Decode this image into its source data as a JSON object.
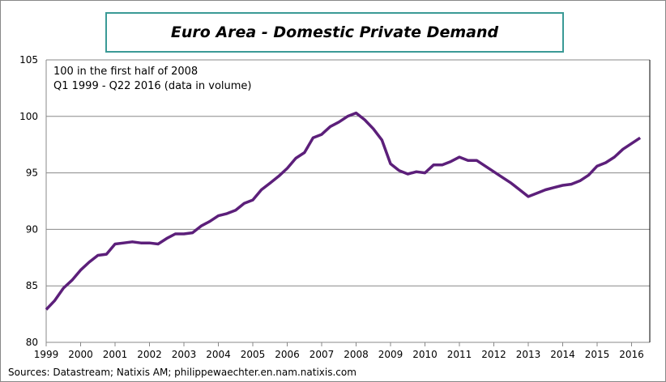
{
  "chart_data": {
    "type": "line",
    "title": "Euro Area - Domestic Private Demand",
    "subtitle": [
      "100 in the first half of 2008",
      "Q1 1999 - Q22 2016 (data in volume)"
    ],
    "source": "Sources: Datastream; Natixis AM; philippewaechter.en.nam.natixis.com",
    "xlabel": "",
    "ylabel": "",
    "ylim": [
      80,
      105
    ],
    "yticks": [
      80,
      85,
      90,
      95,
      100,
      105
    ],
    "xticks": [
      "1999",
      "2000",
      "2001",
      "2002",
      "2003",
      "2004",
      "2005",
      "2006",
      "2007",
      "2008",
      "2009",
      "2010",
      "2011",
      "2012",
      "2013",
      "2014",
      "2015",
      "2016"
    ],
    "grid": true,
    "frequency": "quarterly",
    "start": "1999 Q1",
    "color": "#5c1f7a",
    "values": [
      82.9,
      83.7,
      84.8,
      85.5,
      86.4,
      87.1,
      87.7,
      87.8,
      88.7,
      88.8,
      88.9,
      88.8,
      88.8,
      88.7,
      89.2,
      89.6,
      89.6,
      89.7,
      90.3,
      90.7,
      91.2,
      91.4,
      91.7,
      92.3,
      92.6,
      93.5,
      94.1,
      94.7,
      95.4,
      96.3,
      96.8,
      98.1,
      98.4,
      99.1,
      99.5,
      100.0,
      100.3,
      99.7,
      98.9,
      97.9,
      95.8,
      95.2,
      94.9,
      95.1,
      95.0,
      95.7,
      95.7,
      96.0,
      96.4,
      96.1,
      96.1,
      95.6,
      95.1,
      94.6,
      94.1,
      93.5,
      92.9,
      93.2,
      93.5,
      93.7,
      93.9,
      94.0,
      94.3,
      94.8,
      95.6,
      95.9,
      96.4,
      97.1,
      97.6,
      98.1
    ]
  }
}
